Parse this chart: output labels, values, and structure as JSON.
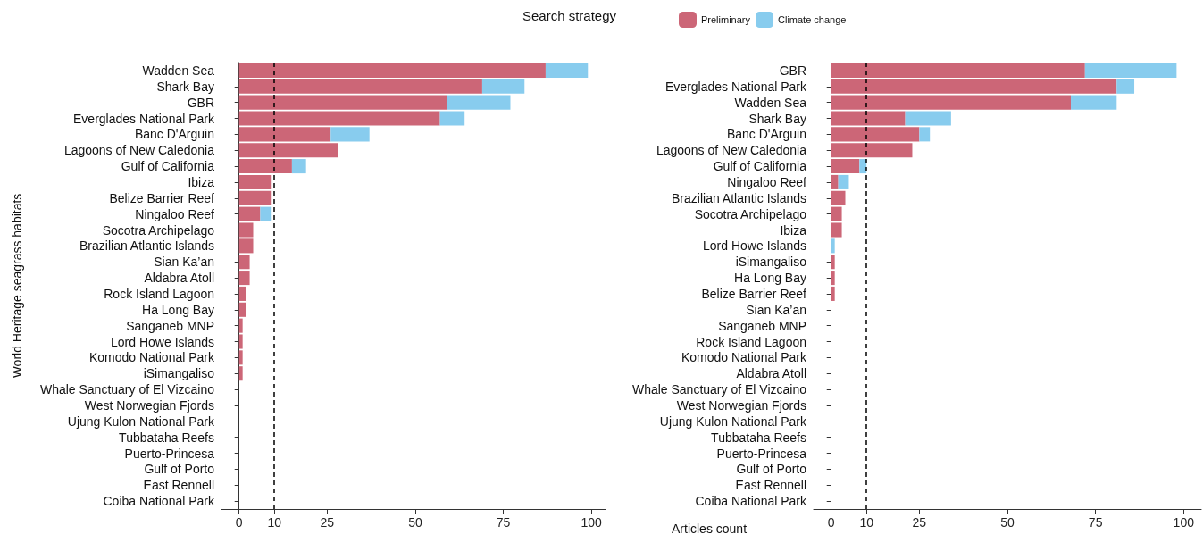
{
  "chart_data": [
    {
      "type": "bar",
      "orientation": "horizontal",
      "stacked": true,
      "ylabel": "World Heritage seagrass habitats",
      "xlabel": "Articles count",
      "legend_title": "Search strategy",
      "legend": "top",
      "categories": [
        "Wadden Sea",
        "Shark Bay",
        "GBR",
        "Everglades National Park",
        "Banc D'Arguin",
        "Lagoons of New Caledonia",
        "Gulf of California",
        "Ibiza",
        "Belize Barrier Reef",
        "Ningaloo Reef",
        "Socotra Archipelago",
        "Brazilian Atlantic Islands",
        "Sian Ka’an",
        "Aldabra Atoll",
        "Rock Island Lagoon",
        "Ha Long Bay",
        "Sanganeb MNP",
        "Lord Howe Islands",
        "Komodo National Park",
        "iSimangaliso",
        "Whale Sanctuary of El Vizcaino",
        "West Norwegian Fjords",
        "Ujung Kulon National Park",
        "Tubbataha Reefs",
        "Puerto-Princesa",
        "Gulf of Porto",
        "East Rennell",
        "Coiba National Park"
      ],
      "series": [
        {
          "name": "Preliminary",
          "color": "#cc6677",
          "values": [
            87,
            69,
            59,
            57,
            26,
            28,
            15,
            9,
            9,
            6,
            4,
            4,
            3,
            3,
            2,
            2,
            1,
            1,
            1,
            1,
            0,
            0,
            0,
            0,
            0,
            0,
            0,
            0
          ]
        },
        {
          "name": "Climate change",
          "color": "#88ccee",
          "values": [
            12,
            12,
            18,
            7,
            11,
            0,
            4,
            0,
            0,
            3,
            0,
            0,
            0,
            0,
            0,
            0,
            0,
            0,
            0,
            0,
            0,
            0,
            0,
            0,
            0,
            0,
            0,
            0
          ]
        }
      ],
      "xlim": [
        -5,
        104
      ],
      "xticks": [
        0,
        10,
        25,
        50,
        75,
        100
      ],
      "grid": false,
      "ref_lines": [
        {
          "axis": "x",
          "value": 10,
          "line_style": "dashed",
          "color": "#000000"
        }
      ]
    },
    {
      "type": "bar",
      "orientation": "horizontal",
      "stacked": true,
      "categories": [
        "GBR",
        "Everglades National Park",
        "Wadden Sea",
        "Shark Bay",
        "Banc D'Arguin",
        "Lagoons of New Caledonia",
        "Gulf of California",
        "Ningaloo Reef",
        "Brazilian Atlantic Islands",
        "Socotra Archipelago",
        "Ibiza",
        "Lord Howe Islands",
        "iSimangaliso",
        "Ha Long Bay",
        "Belize Barrier Reef",
        "Sian Ka’an",
        "Sanganeb MNP",
        "Rock Island Lagoon",
        "Komodo National Park",
        "Aldabra Atoll",
        "Whale Sanctuary of El Vizcaino",
        "West Norwegian Fjords",
        "Ujung Kulon National Park",
        "Tubbataha Reefs",
        "Puerto-Princesa",
        "Gulf of Porto",
        "East Rennell",
        "Coiba National Park"
      ],
      "series": [
        {
          "color": "#cc6677",
          "values": [
            72,
            81,
            68,
            21,
            25,
            23,
            8,
            2,
            4,
            3,
            3,
            0,
            1,
            1,
            1,
            0,
            0,
            0,
            0,
            0,
            0,
            0,
            0,
            0,
            0,
            0,
            0,
            0
          ]
        },
        {
          "color": "#88ccee",
          "values": [
            26,
            5,
            13,
            13,
            3,
            0,
            2,
            3,
            0,
            0,
            0,
            1,
            0,
            0,
            0,
            0,
            0,
            0,
            0,
            0,
            0,
            0,
            0,
            0,
            0,
            0,
            0,
            0
          ]
        }
      ],
      "xlim": [
        -5,
        105
      ],
      "xticks": [
        0,
        10,
        25,
        50,
        75,
        100
      ],
      "grid": false,
      "ref_lines": [
        {
          "axis": "x",
          "value": 10,
          "line_style": "dashed",
          "color": "#000000"
        }
      ]
    }
  ]
}
